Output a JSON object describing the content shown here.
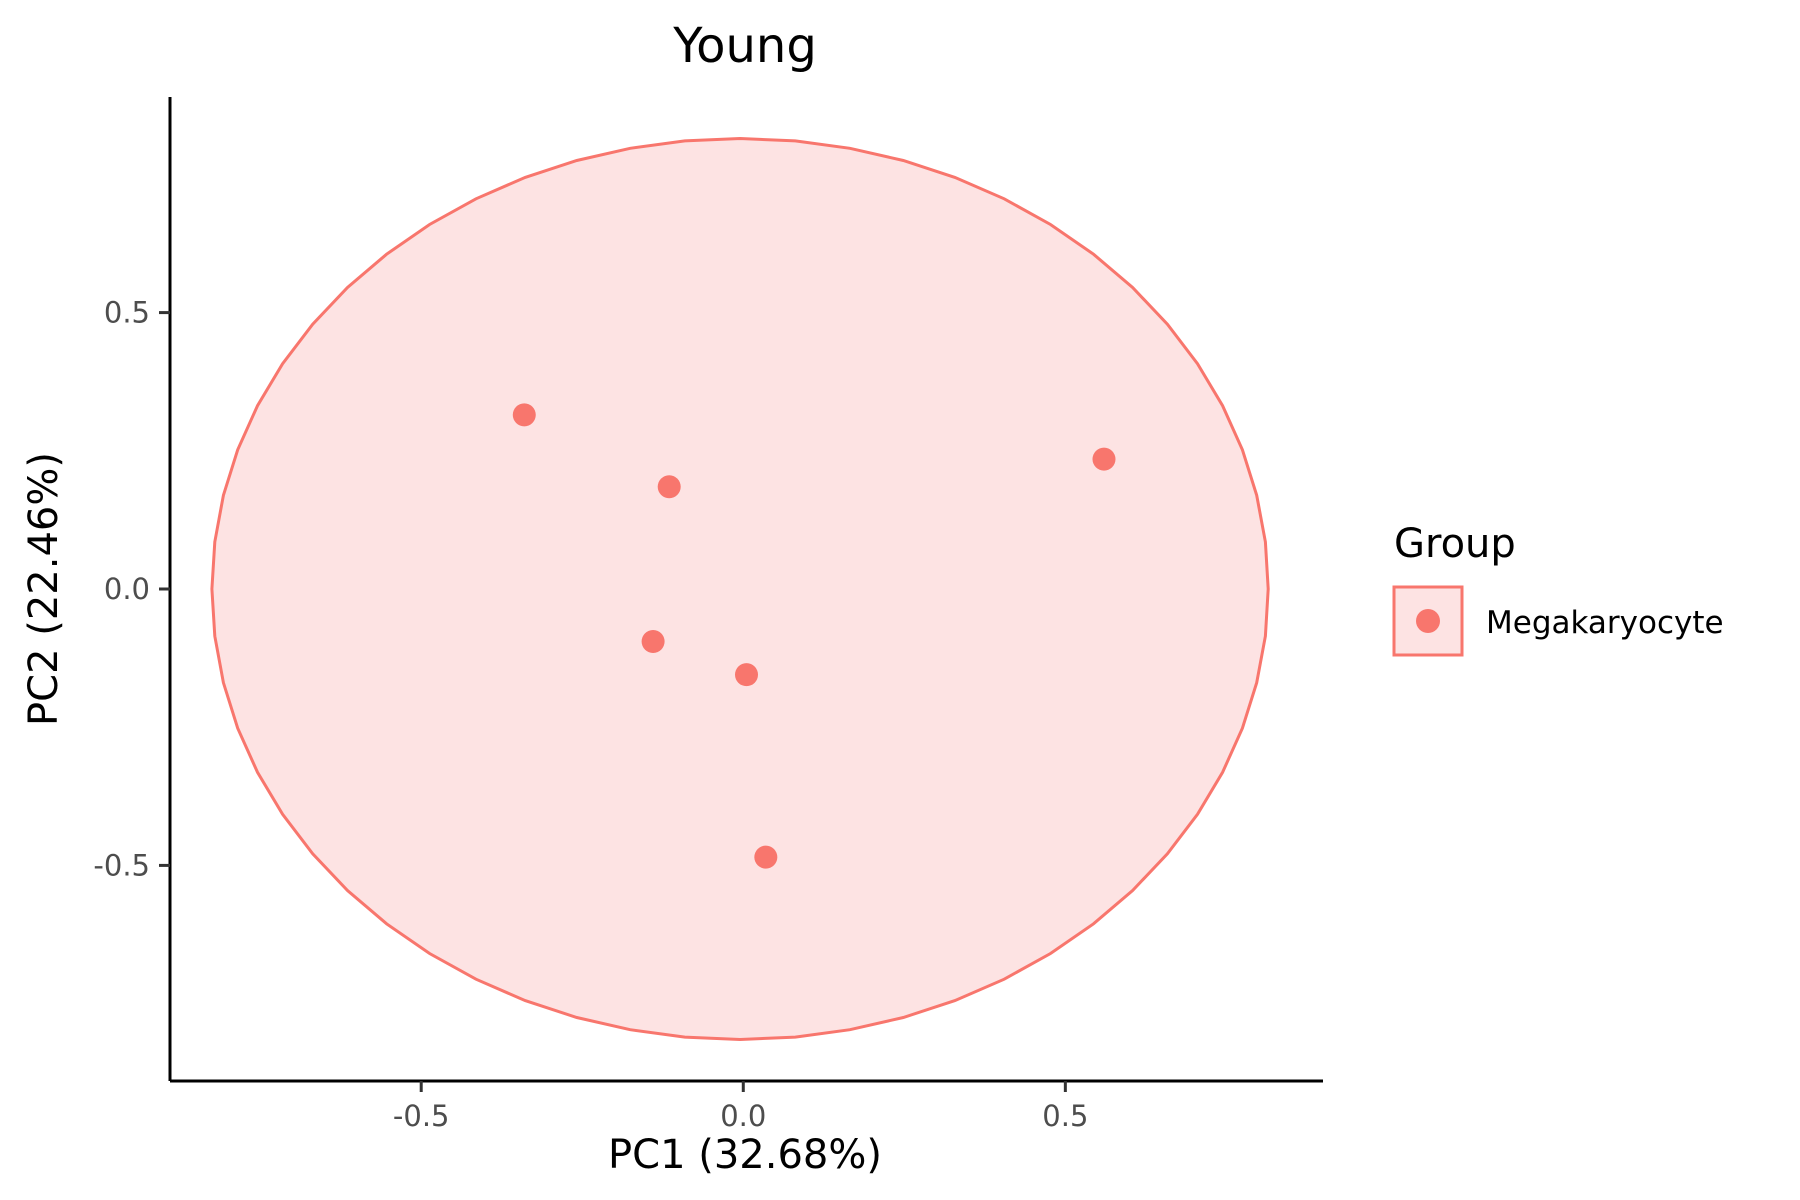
{
  "chart_data": {
    "type": "scatter",
    "title": "Young",
    "xlabel": "PC1 (32.68%)",
    "ylabel": "PC2 (22.46%)",
    "xlim": [
      -0.89,
      0.9
    ],
    "ylim": [
      -0.89,
      0.89
    ],
    "xticks": [
      -0.5,
      0.0,
      0.5
    ],
    "xtick_labels": [
      "-0.5",
      "0.0",
      "0.5"
    ],
    "yticks": [
      -0.5,
      0.0,
      0.5
    ],
    "ytick_labels": [
      "-0.5",
      "0.0",
      "0.5"
    ],
    "grid": false,
    "legend": {
      "title": "Group",
      "position": "right"
    },
    "series": [
      {
        "name": "Megakaryocyte",
        "color": "#F8766D",
        "fill": "#FDE3E3",
        "points": [
          {
            "x": -0.34,
            "y": 0.315
          },
          {
            "x": -0.115,
            "y": 0.185
          },
          {
            "x": 0.56,
            "y": 0.235
          },
          {
            "x": -0.14,
            "y": -0.095
          },
          {
            "x": 0.005,
            "y": -0.155
          },
          {
            "x": 0.035,
            "y": -0.485
          }
        ],
        "ellipse": {
          "cx": -0.005,
          "cy": 0.0,
          "rx": 0.82,
          "ry": 0.815
        }
      }
    ]
  }
}
